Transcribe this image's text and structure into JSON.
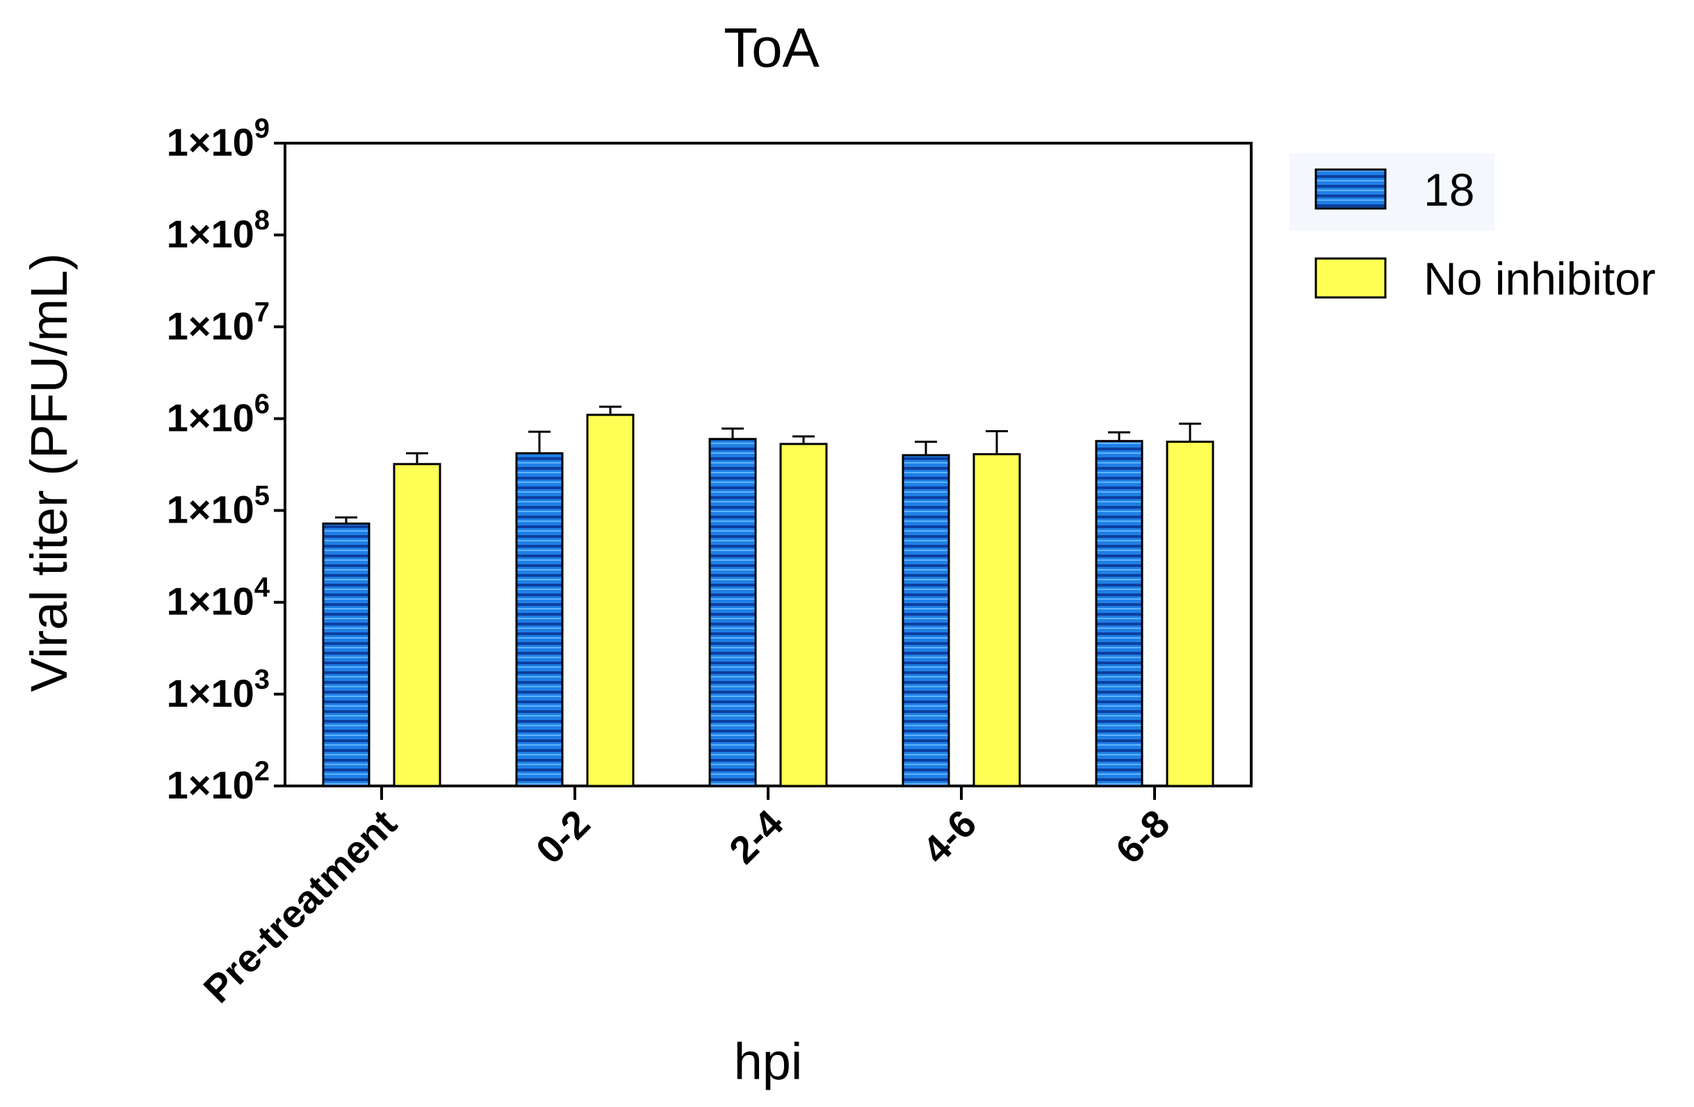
{
  "chart_data": {
    "type": "bar",
    "title": "ToA",
    "xlabel": "hpi",
    "ylabel": "Viral titer (PFU/mL)",
    "yscale": "log",
    "ylim": [
      100,
      1000000000
    ],
    "yticks": [
      {
        "base": "1×10",
        "exp": "2",
        "value": 100
      },
      {
        "base": "1×10",
        "exp": "3",
        "value": 1000
      },
      {
        "base": "1×10",
        "exp": "4",
        "value": 10000
      },
      {
        "base": "1×10",
        "exp": "5",
        "value": 100000
      },
      {
        "base": "1×10",
        "exp": "6",
        "value": 1000000
      },
      {
        "base": "1×10",
        "exp": "7",
        "value": 10000000
      },
      {
        "base": "1×10",
        "exp": "8",
        "value": 100000000
      },
      {
        "base": "1×10",
        "exp": "9",
        "value": 1000000000
      }
    ],
    "categories": [
      "Pre-treatment",
      "0-2",
      "2-4",
      "4-6",
      "6-8"
    ],
    "series": [
      {
        "name": "18",
        "color": "#1f7fe6",
        "pattern": "horizontal-stripes",
        "values": [
          72000,
          420000,
          600000,
          400000,
          570000
        ],
        "errors": [
          12000,
          300000,
          180000,
          160000,
          140000
        ]
      },
      {
        "name": "No inhibitor",
        "color": "#ffff55",
        "pattern": "solid",
        "values": [
          320000,
          1100000,
          530000,
          410000,
          560000
        ],
        "errors": [
          100000,
          250000,
          110000,
          320000,
          320000
        ]
      }
    ],
    "legend_position": "right",
    "grid": false
  }
}
